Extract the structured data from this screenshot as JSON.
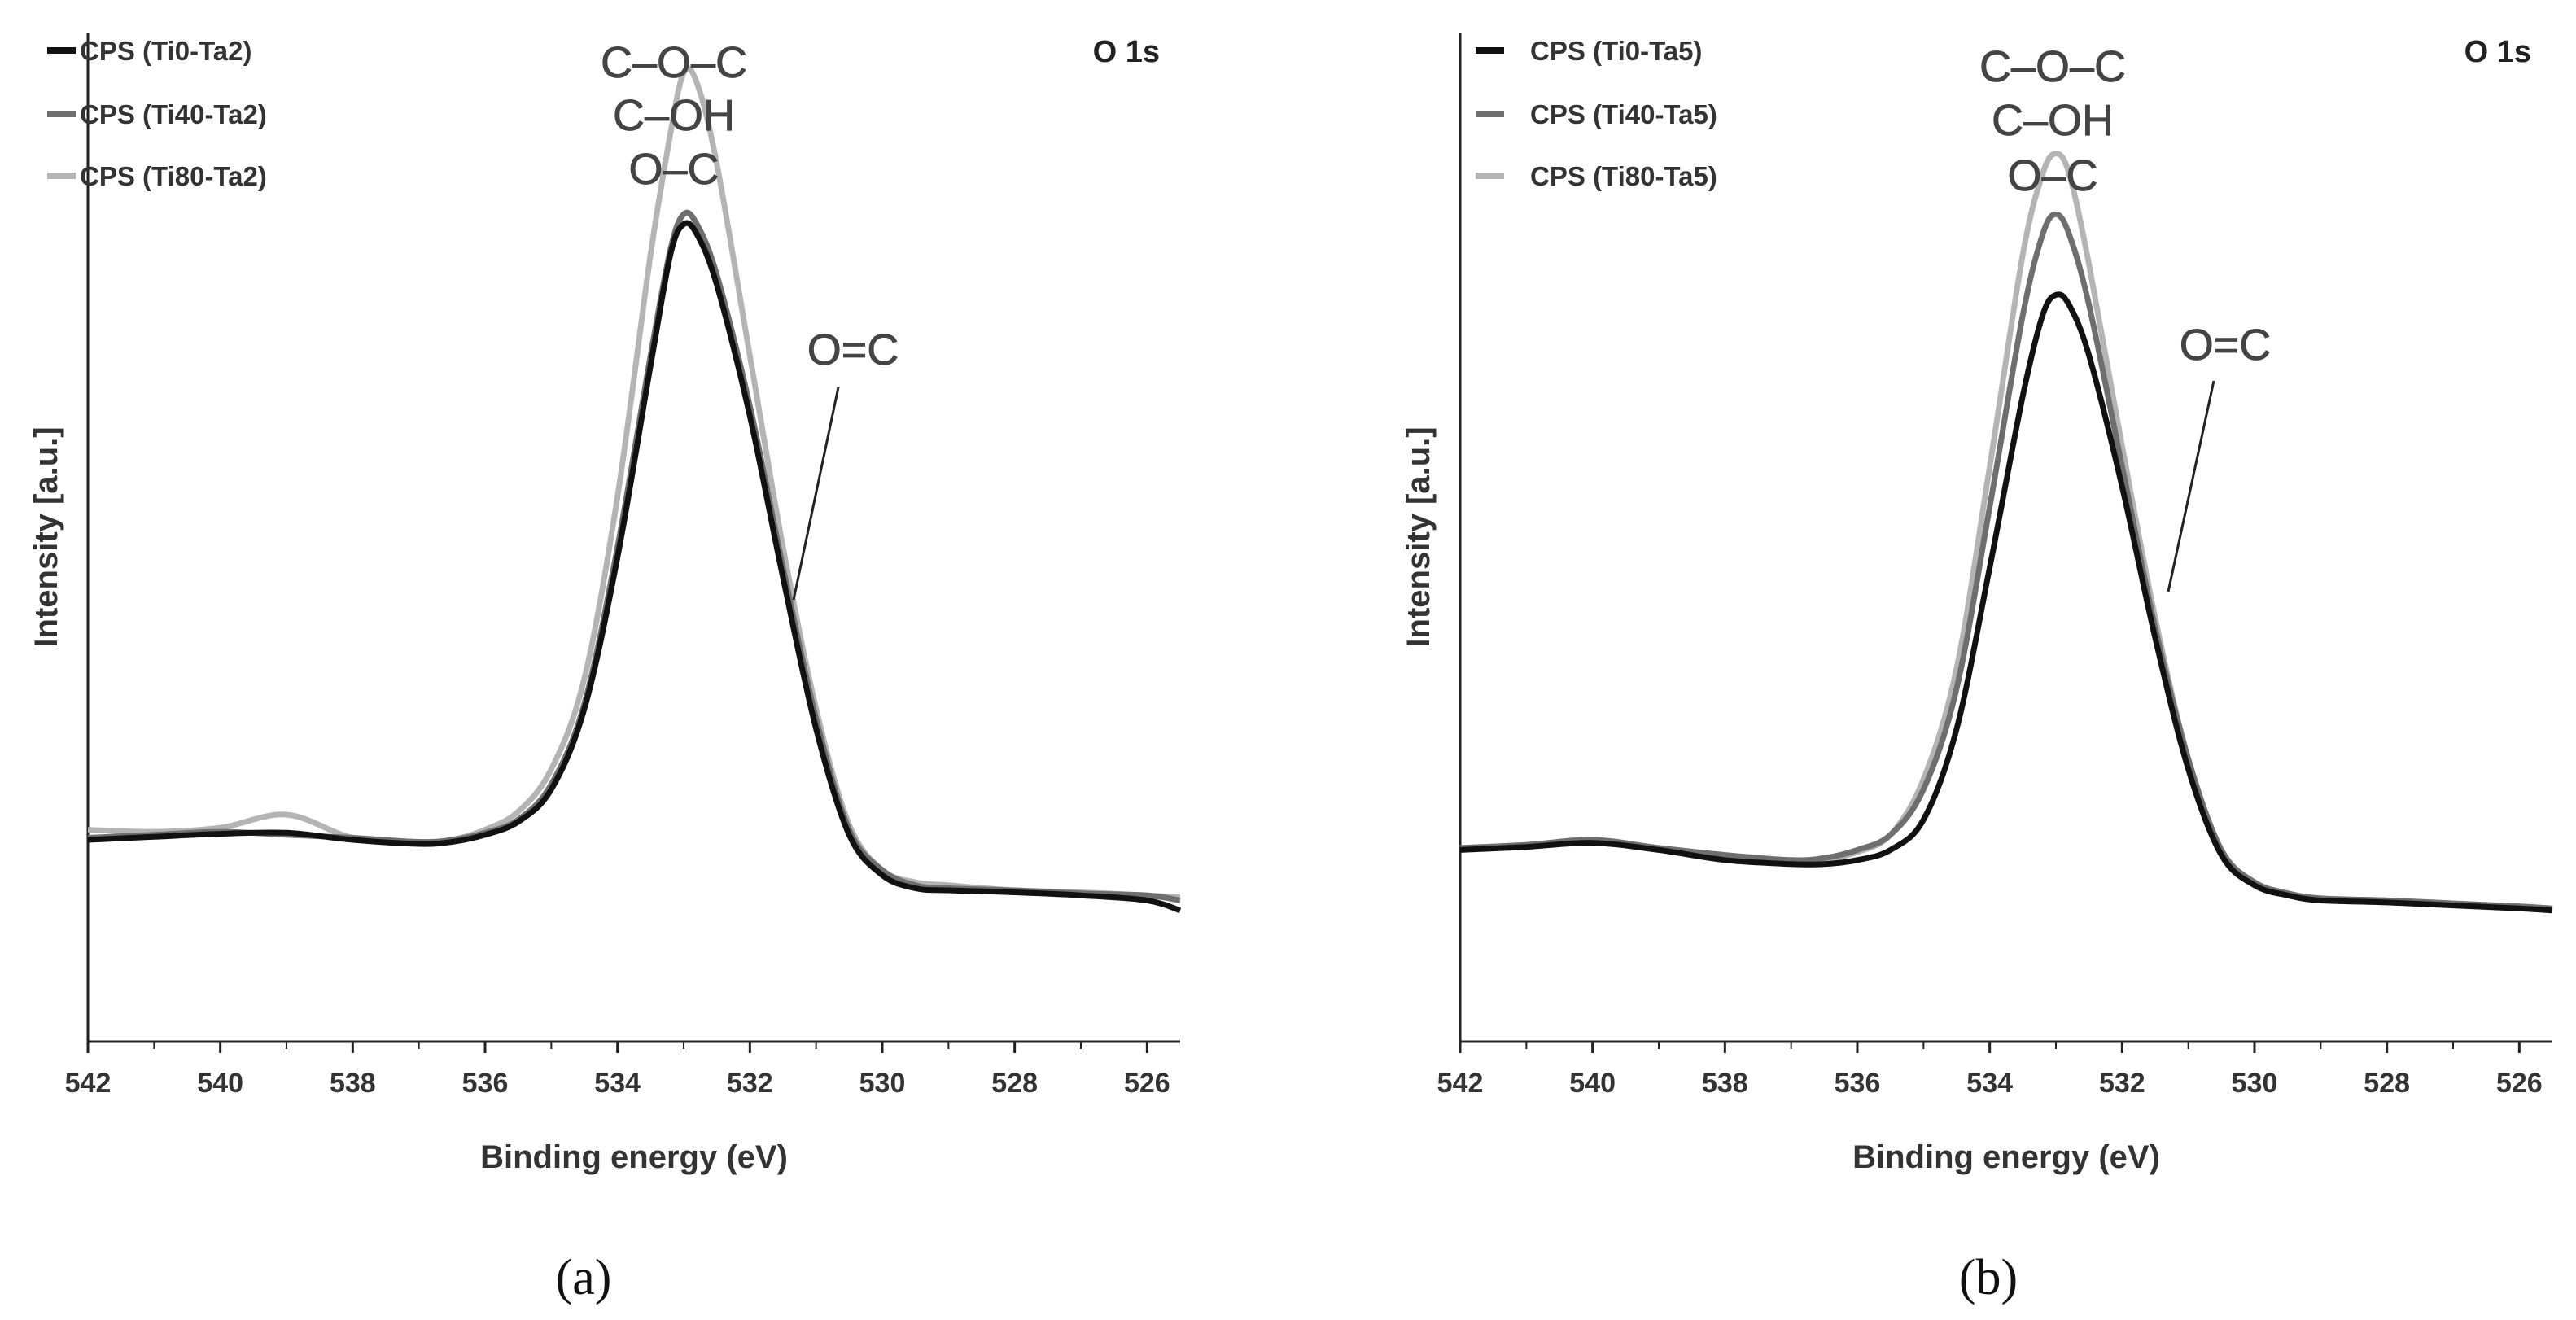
{
  "figure": {
    "panels": [
      "(a)",
      "(b)"
    ]
  },
  "colors": {
    "series": [
      "#111111",
      "#6e6e6e",
      "#b4b4b4"
    ],
    "axis": "#222222",
    "text": "#333333"
  },
  "chart_data": [
    {
      "type": "line",
      "panel_label_text": "(a)",
      "region_label": "O 1s",
      "xlabel": "Binding energy (eV)",
      "ylabel": "Intensity [a.u.]",
      "xlim": [
        542,
        525.5
      ],
      "ylim": [
        0,
        1
      ],
      "x_ticks": [
        542,
        540,
        538,
        536,
        534,
        532,
        530,
        528,
        526
      ],
      "x_tick_labels": [
        "542",
        "540",
        "538",
        "536",
        "534",
        "532",
        "530",
        "528",
        "526"
      ],
      "grid": false,
      "legend_position": "top-left",
      "peak_annotation_lines": [
        "C–O–C",
        "C–OH",
        "O–C"
      ],
      "shoulder_annotation": "O=C",
      "series": [
        {
          "name": "CPS (Ti0-Ta2)",
          "x": [
            542,
            541,
            540,
            539,
            538,
            537,
            536.5,
            536,
            535.5,
            535,
            534.5,
            534,
            533.5,
            533.2,
            533,
            532.8,
            532.5,
            532,
            531.5,
            531,
            530.5,
            530,
            529.5,
            529,
            528,
            527,
            526,
            525.5
          ],
          "y": [
            0.2,
            0.203,
            0.206,
            0.207,
            0.2,
            0.196,
            0.198,
            0.205,
            0.218,
            0.25,
            0.33,
            0.48,
            0.67,
            0.78,
            0.81,
            0.8,
            0.75,
            0.62,
            0.46,
            0.31,
            0.205,
            0.165,
            0.152,
            0.15,
            0.148,
            0.145,
            0.14,
            0.13
          ]
        },
        {
          "name": "CPS (Ti40-Ta2)",
          "x": [
            542,
            541,
            540,
            539,
            538,
            537,
            536.5,
            536,
            535.5,
            535,
            534.5,
            534,
            533.5,
            533.2,
            533,
            532.8,
            532.5,
            532,
            531.5,
            531,
            530.5,
            530,
            529.5,
            529,
            528,
            527,
            526,
            525.5
          ],
          "y": [
            0.202,
            0.205,
            0.208,
            0.205,
            0.202,
            0.198,
            0.2,
            0.207,
            0.22,
            0.255,
            0.335,
            0.49,
            0.68,
            0.785,
            0.82,
            0.81,
            0.76,
            0.63,
            0.47,
            0.32,
            0.21,
            0.17,
            0.155,
            0.152,
            0.15,
            0.147,
            0.145,
            0.14
          ]
        },
        {
          "name": "CPS (Ti80-Ta2)",
          "x": [
            542,
            541,
            540,
            539,
            538,
            537,
            536.5,
            536,
            535.5,
            535,
            534.5,
            534,
            533.5,
            533.2,
            533,
            532.8,
            532.5,
            532,
            531.5,
            531,
            530.5,
            530,
            529.5,
            529,
            528,
            527,
            526,
            525.5
          ],
          "y": [
            0.21,
            0.208,
            0.212,
            0.225,
            0.202,
            0.197,
            0.2,
            0.21,
            0.228,
            0.27,
            0.36,
            0.54,
            0.78,
            0.9,
            0.96,
            0.95,
            0.87,
            0.68,
            0.49,
            0.33,
            0.215,
            0.17,
            0.158,
            0.155,
            0.15,
            0.148,
            0.145,
            0.143
          ]
        }
      ]
    },
    {
      "type": "line",
      "panel_label_text": "(b)",
      "region_label": "O 1s",
      "xlabel": "Binding energy (eV)",
      "ylabel": "Intensity [a.u.]",
      "xlim": [
        542,
        525.5
      ],
      "ylim": [
        0,
        1
      ],
      "x_ticks": [
        542,
        540,
        538,
        536,
        534,
        532,
        530,
        528,
        526
      ],
      "x_tick_labels": [
        "542",
        "540",
        "538",
        "536",
        "534",
        "532",
        "530",
        "528",
        "526"
      ],
      "grid": false,
      "legend_position": "top-left",
      "peak_annotation_lines": [
        "C–O–C",
        "C–OH",
        "O–C"
      ],
      "shoulder_annotation": "O=C",
      "series": [
        {
          "name": "CPS (Ti0-Ta5)",
          "x": [
            542,
            541,
            540,
            539,
            538,
            537,
            536.5,
            536,
            535.5,
            535,
            534.5,
            534,
            533.5,
            533.2,
            533,
            532.8,
            532.5,
            532,
            531.5,
            531,
            530.5,
            530,
            529.5,
            529,
            528,
            527,
            526,
            525.5
          ],
          "y": [
            0.19,
            0.193,
            0.197,
            0.19,
            0.18,
            0.176,
            0.176,
            0.18,
            0.19,
            0.22,
            0.31,
            0.47,
            0.64,
            0.72,
            0.74,
            0.73,
            0.68,
            0.55,
            0.4,
            0.27,
            0.185,
            0.155,
            0.145,
            0.14,
            0.138,
            0.135,
            0.132,
            0.13
          ]
        },
        {
          "name": "CPS (Ti40-Ta5)",
          "x": [
            542,
            541,
            540,
            539,
            538,
            537,
            536.5,
            536,
            535.5,
            535,
            534.5,
            534,
            533.5,
            533.2,
            533,
            532.8,
            532.5,
            532,
            531.5,
            531,
            530.5,
            530,
            529.5,
            529,
            528,
            527,
            526,
            525.5
          ],
          "y": [
            0.192,
            0.195,
            0.2,
            0.192,
            0.185,
            0.18,
            0.182,
            0.19,
            0.205,
            0.25,
            0.35,
            0.53,
            0.72,
            0.8,
            0.82,
            0.8,
            0.73,
            0.57,
            0.41,
            0.28,
            0.19,
            0.158,
            0.147,
            0.142,
            0.14,
            0.137,
            0.134,
            0.132
          ]
        },
        {
          "name": "CPS (Ti80-Ta5)",
          "x": [
            542,
            541,
            540,
            539,
            538,
            537,
            536.5,
            536,
            535.5,
            535,
            534.5,
            534,
            533.5,
            533.2,
            533,
            532.8,
            532.5,
            532,
            531.5,
            531,
            530.5,
            530,
            529.5,
            529,
            528,
            527,
            526,
            525.5
          ],
          "y": [
            0.192,
            0.195,
            0.198,
            0.19,
            0.183,
            0.178,
            0.18,
            0.188,
            0.205,
            0.26,
            0.37,
            0.57,
            0.78,
            0.86,
            0.88,
            0.86,
            0.77,
            0.59,
            0.42,
            0.28,
            0.19,
            0.158,
            0.147,
            0.142,
            0.14,
            0.137,
            0.134,
            0.132
          ]
        }
      ]
    }
  ]
}
